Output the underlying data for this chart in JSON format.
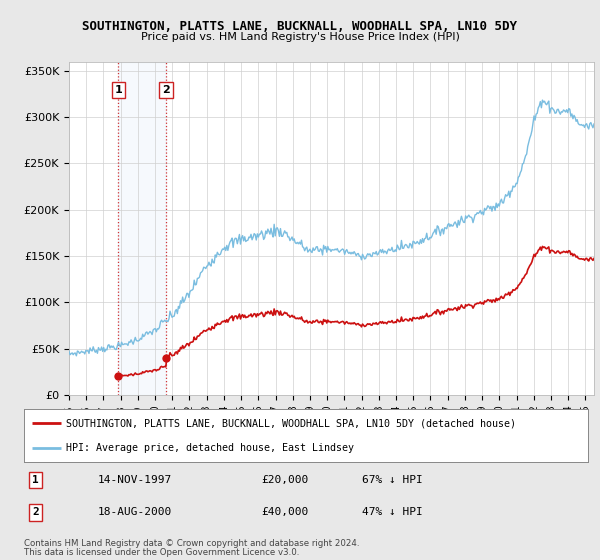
{
  "title": "SOUTHINGTON, PLATTS LANE, BUCKNALL, WOODHALL SPA, LN10 5DY",
  "subtitle": "Price paid vs. HM Land Registry's House Price Index (HPI)",
  "ylabel_ticks": [
    "£0",
    "£50K",
    "£100K",
    "£150K",
    "£200K",
    "£250K",
    "£300K",
    "£350K"
  ],
  "ytick_vals": [
    0,
    50000,
    100000,
    150000,
    200000,
    250000,
    300000,
    350000
  ],
  "ylim": [
    0,
    360000
  ],
  "hpi_color": "#7abde0",
  "price_color": "#cc1111",
  "background_color": "#e8e8e8",
  "plot_bg_color": "#ffffff",
  "transaction1": {
    "date_num": 1997.87,
    "price": 20000,
    "label": "1",
    "pct": "67%",
    "dir": "↓",
    "date_str": "14-NOV-1997"
  },
  "transaction2": {
    "date_num": 2000.63,
    "price": 40000,
    "label": "2",
    "pct": "47%",
    "dir": "↓",
    "date_str": "18-AUG-2000"
  },
  "legend_line1": "SOUTHINGTON, PLATTS LANE, BUCKNALL, WOODHALL SPA, LN10 5DY (detached house)",
  "legend_line2": "HPI: Average price, detached house, East Lindsey",
  "footer1": "Contains HM Land Registry data © Crown copyright and database right 2024.",
  "footer2": "This data is licensed under the Open Government Licence v3.0.",
  "xlim_min": 1995.0,
  "xlim_max": 2025.5
}
